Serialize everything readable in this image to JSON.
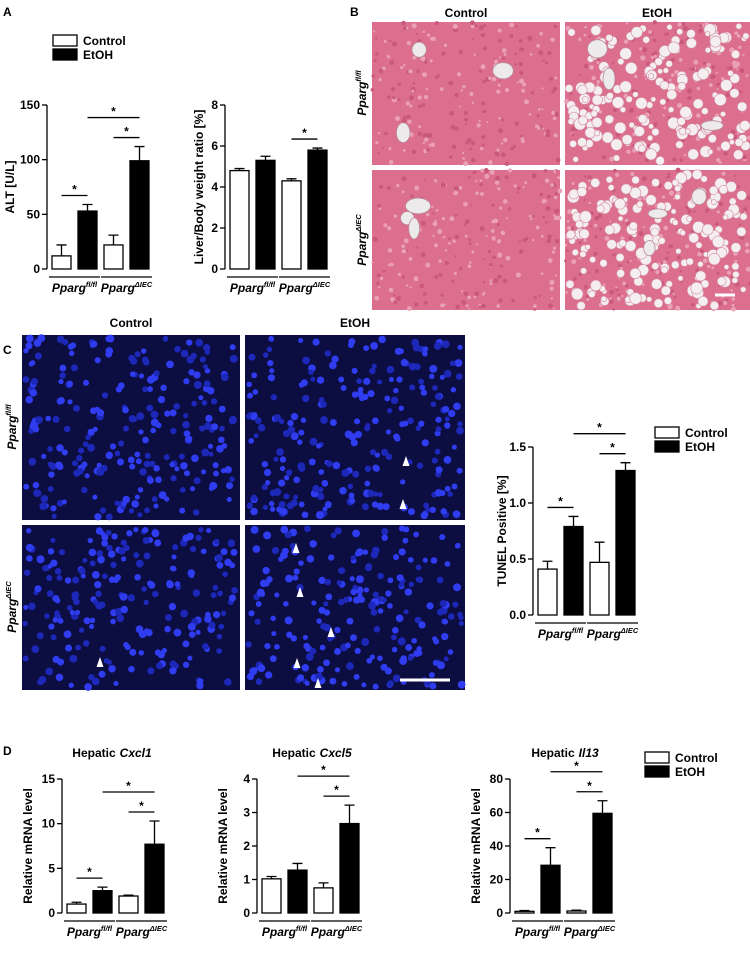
{
  "panel_labels": [
    "A",
    "B",
    "C",
    "D"
  ],
  "histology": {
    "columns": [
      "Control",
      "EtOH"
    ],
    "rows": [
      {
        "text": "Pparg",
        "sup": "fl/fl"
      },
      {
        "text": "Pparg",
        "sup": "ΔIEC"
      }
    ]
  },
  "tunel_images": {
    "columns": [
      "Control",
      "EtOH"
    ],
    "rows": [
      {
        "text": "Pparg",
        "sup": "fl/fl"
      },
      {
        "text": "Pparg",
        "sup": "ΔIEC"
      }
    ]
  },
  "chart_data": [
    {
      "type": "bar",
      "ylabel": "ALT [U/L]",
      "legend": true,
      "categories": [
        {
          "text": "Pparg",
          "sup": "fl/fl"
        },
        {
          "text": "Pparg",
          "sup": "ΔIEC"
        }
      ],
      "series": [
        {
          "name": "Control",
          "color": "#ffffff",
          "values": [
            12,
            22
          ],
          "errors": [
            10,
            9
          ]
        },
        {
          "name": "EtOH",
          "color": "#000000",
          "values": [
            53,
            99
          ],
          "errors": [
            6,
            13
          ]
        }
      ],
      "ylim": [
        0,
        150
      ],
      "yticks": [
        0,
        50,
        100,
        150
      ],
      "significance": [
        {
          "pair": [
            [
              0,
              0
            ],
            [
              1,
              0
            ]
          ],
          "label": "*"
        },
        {
          "pair": [
            [
              0,
              1
            ],
            [
              1,
              1
            ]
          ],
          "label": "*"
        },
        {
          "pair": [
            [
              1,
              0
            ],
            [
              1,
              1
            ]
          ],
          "label": "*"
        }
      ]
    },
    {
      "type": "bar",
      "ylabel": "Liver/Body weight ratio [%]",
      "categories": [
        {
          "text": "Pparg",
          "sup": "fl/fl"
        },
        {
          "text": "Pparg",
          "sup": "ΔIEC"
        }
      ],
      "series": [
        {
          "name": "Control",
          "color": "#ffffff",
          "values": [
            4.8,
            4.3
          ],
          "errors": [
            0.1,
            0.1
          ]
        },
        {
          "name": "EtOH",
          "color": "#000000",
          "values": [
            5.3,
            5.8
          ],
          "errors": [
            0.2,
            0.1
          ]
        }
      ],
      "ylim": [
        0,
        8
      ],
      "yticks": [
        0,
        2,
        4,
        6,
        8
      ],
      "significance": [
        {
          "pair": [
            [
              0,
              1
            ],
            [
              1,
              1
            ]
          ],
          "label": "*"
        }
      ]
    },
    {
      "type": "bar",
      "ylabel": "TUNEL Positive [%]",
      "legend": true,
      "categories": [
        {
          "text": "Pparg",
          "sup": "fl/fl"
        },
        {
          "text": "Pparg",
          "sup": "ΔIEC"
        }
      ],
      "series": [
        {
          "name": "Control",
          "color": "#ffffff",
          "values": [
            0.41,
            0.47
          ],
          "errors": [
            0.07,
            0.18
          ]
        },
        {
          "name": "EtOH",
          "color": "#000000",
          "values": [
            0.79,
            1.29
          ],
          "errors": [
            0.09,
            0.07
          ]
        }
      ],
      "ylim": [
        0,
        1.5
      ],
      "yticks": [
        {
          "value": 0,
          "label": "0.0"
        },
        {
          "value": 0.5,
          "label": "0.5"
        },
        {
          "value": 1,
          "label": "1.0"
        },
        {
          "value": 1.5,
          "label": "1.5"
        }
      ],
      "significance": [
        {
          "pair": [
            [
              0,
              0
            ],
            [
              1,
              0
            ]
          ],
          "label": "*"
        },
        {
          "pair": [
            [
              0,
              1
            ],
            [
              1,
              1
            ]
          ],
          "label": "*"
        },
        {
          "pair": [
            [
              1,
              0
            ],
            [
              1,
              1
            ]
          ],
          "label": "*"
        }
      ]
    },
    {
      "type": "bar",
      "title": {
        "text": "Hepatic",
        "gene": "Cxcl1"
      },
      "ylabel": "Relative mRNA level",
      "categories": [
        {
          "text": "Pparg",
          "sup": "fl/fl"
        },
        {
          "text": "Pparg",
          "sup": "ΔIEC"
        }
      ],
      "series": [
        {
          "name": "Control",
          "color": "#ffffff",
          "values": [
            1.0,
            1.9
          ],
          "errors": [
            0.2,
            0.1
          ]
        },
        {
          "name": "EtOH",
          "color": "#000000",
          "values": [
            2.5,
            7.7
          ],
          "errors": [
            0.4,
            2.6
          ]
        }
      ],
      "ylim": [
        0,
        15
      ],
      "yticks": [
        0,
        5,
        10,
        15
      ],
      "significance": [
        {
          "pair": [
            [
              0,
              0
            ],
            [
              1,
              0
            ]
          ],
          "label": "*"
        },
        {
          "pair": [
            [
              0,
              1
            ],
            [
              1,
              1
            ]
          ],
          "label": "*"
        },
        {
          "pair": [
            [
              1,
              0
            ],
            [
              1,
              1
            ]
          ],
          "label": "*"
        }
      ]
    },
    {
      "type": "bar",
      "title": {
        "text": "Hepatic",
        "gene": "Cxcl5"
      },
      "ylabel": "Relative mRNA level",
      "categories": [
        {
          "text": "Pparg",
          "sup": "fl/fl"
        },
        {
          "text": "Pparg",
          "sup": "ΔIEC"
        }
      ],
      "series": [
        {
          "name": "Control",
          "color": "#ffffff",
          "values": [
            1.02,
            0.75
          ],
          "errors": [
            0.07,
            0.15
          ]
        },
        {
          "name": "EtOH",
          "color": "#000000",
          "values": [
            1.28,
            2.67
          ],
          "errors": [
            0.2,
            0.55
          ]
        }
      ],
      "ylim": [
        0,
        4
      ],
      "yticks": [
        0,
        1,
        2,
        3,
        4
      ],
      "significance": [
        {
          "pair": [
            [
              0,
              1
            ],
            [
              1,
              1
            ]
          ],
          "label": "*"
        },
        {
          "pair": [
            [
              1,
              0
            ],
            [
              1,
              1
            ]
          ],
          "label": "*"
        }
      ]
    },
    {
      "type": "bar",
      "title": {
        "text": "Hepatic",
        "gene": "Il13"
      },
      "ylabel": "Relative mRNA level",
      "legend": true,
      "categories": [
        {
          "text": "Pparg",
          "sup": "fl/fl"
        },
        {
          "text": "Pparg",
          "sup": "ΔIEC"
        }
      ],
      "series": [
        {
          "name": "Control",
          "color": "#ffffff",
          "values": [
            1.0,
            1.2
          ],
          "errors": [
            0.5,
            0.5
          ]
        },
        {
          "name": "EtOH",
          "color": "#000000",
          "values": [
            28.5,
            59.5
          ],
          "errors": [
            10.5,
            7.5
          ]
        }
      ],
      "ylim": [
        0,
        80
      ],
      "yticks": [
        0,
        20,
        40,
        60,
        80
      ],
      "significance": [
        {
          "pair": [
            [
              0,
              0
            ],
            [
              1,
              0
            ]
          ],
          "label": "*"
        },
        {
          "pair": [
            [
              0,
              1
            ],
            [
              1,
              1
            ]
          ],
          "label": "*"
        },
        {
          "pair": [
            [
              1,
              0
            ],
            [
              1,
              1
            ]
          ],
          "label": "*"
        }
      ]
    }
  ]
}
